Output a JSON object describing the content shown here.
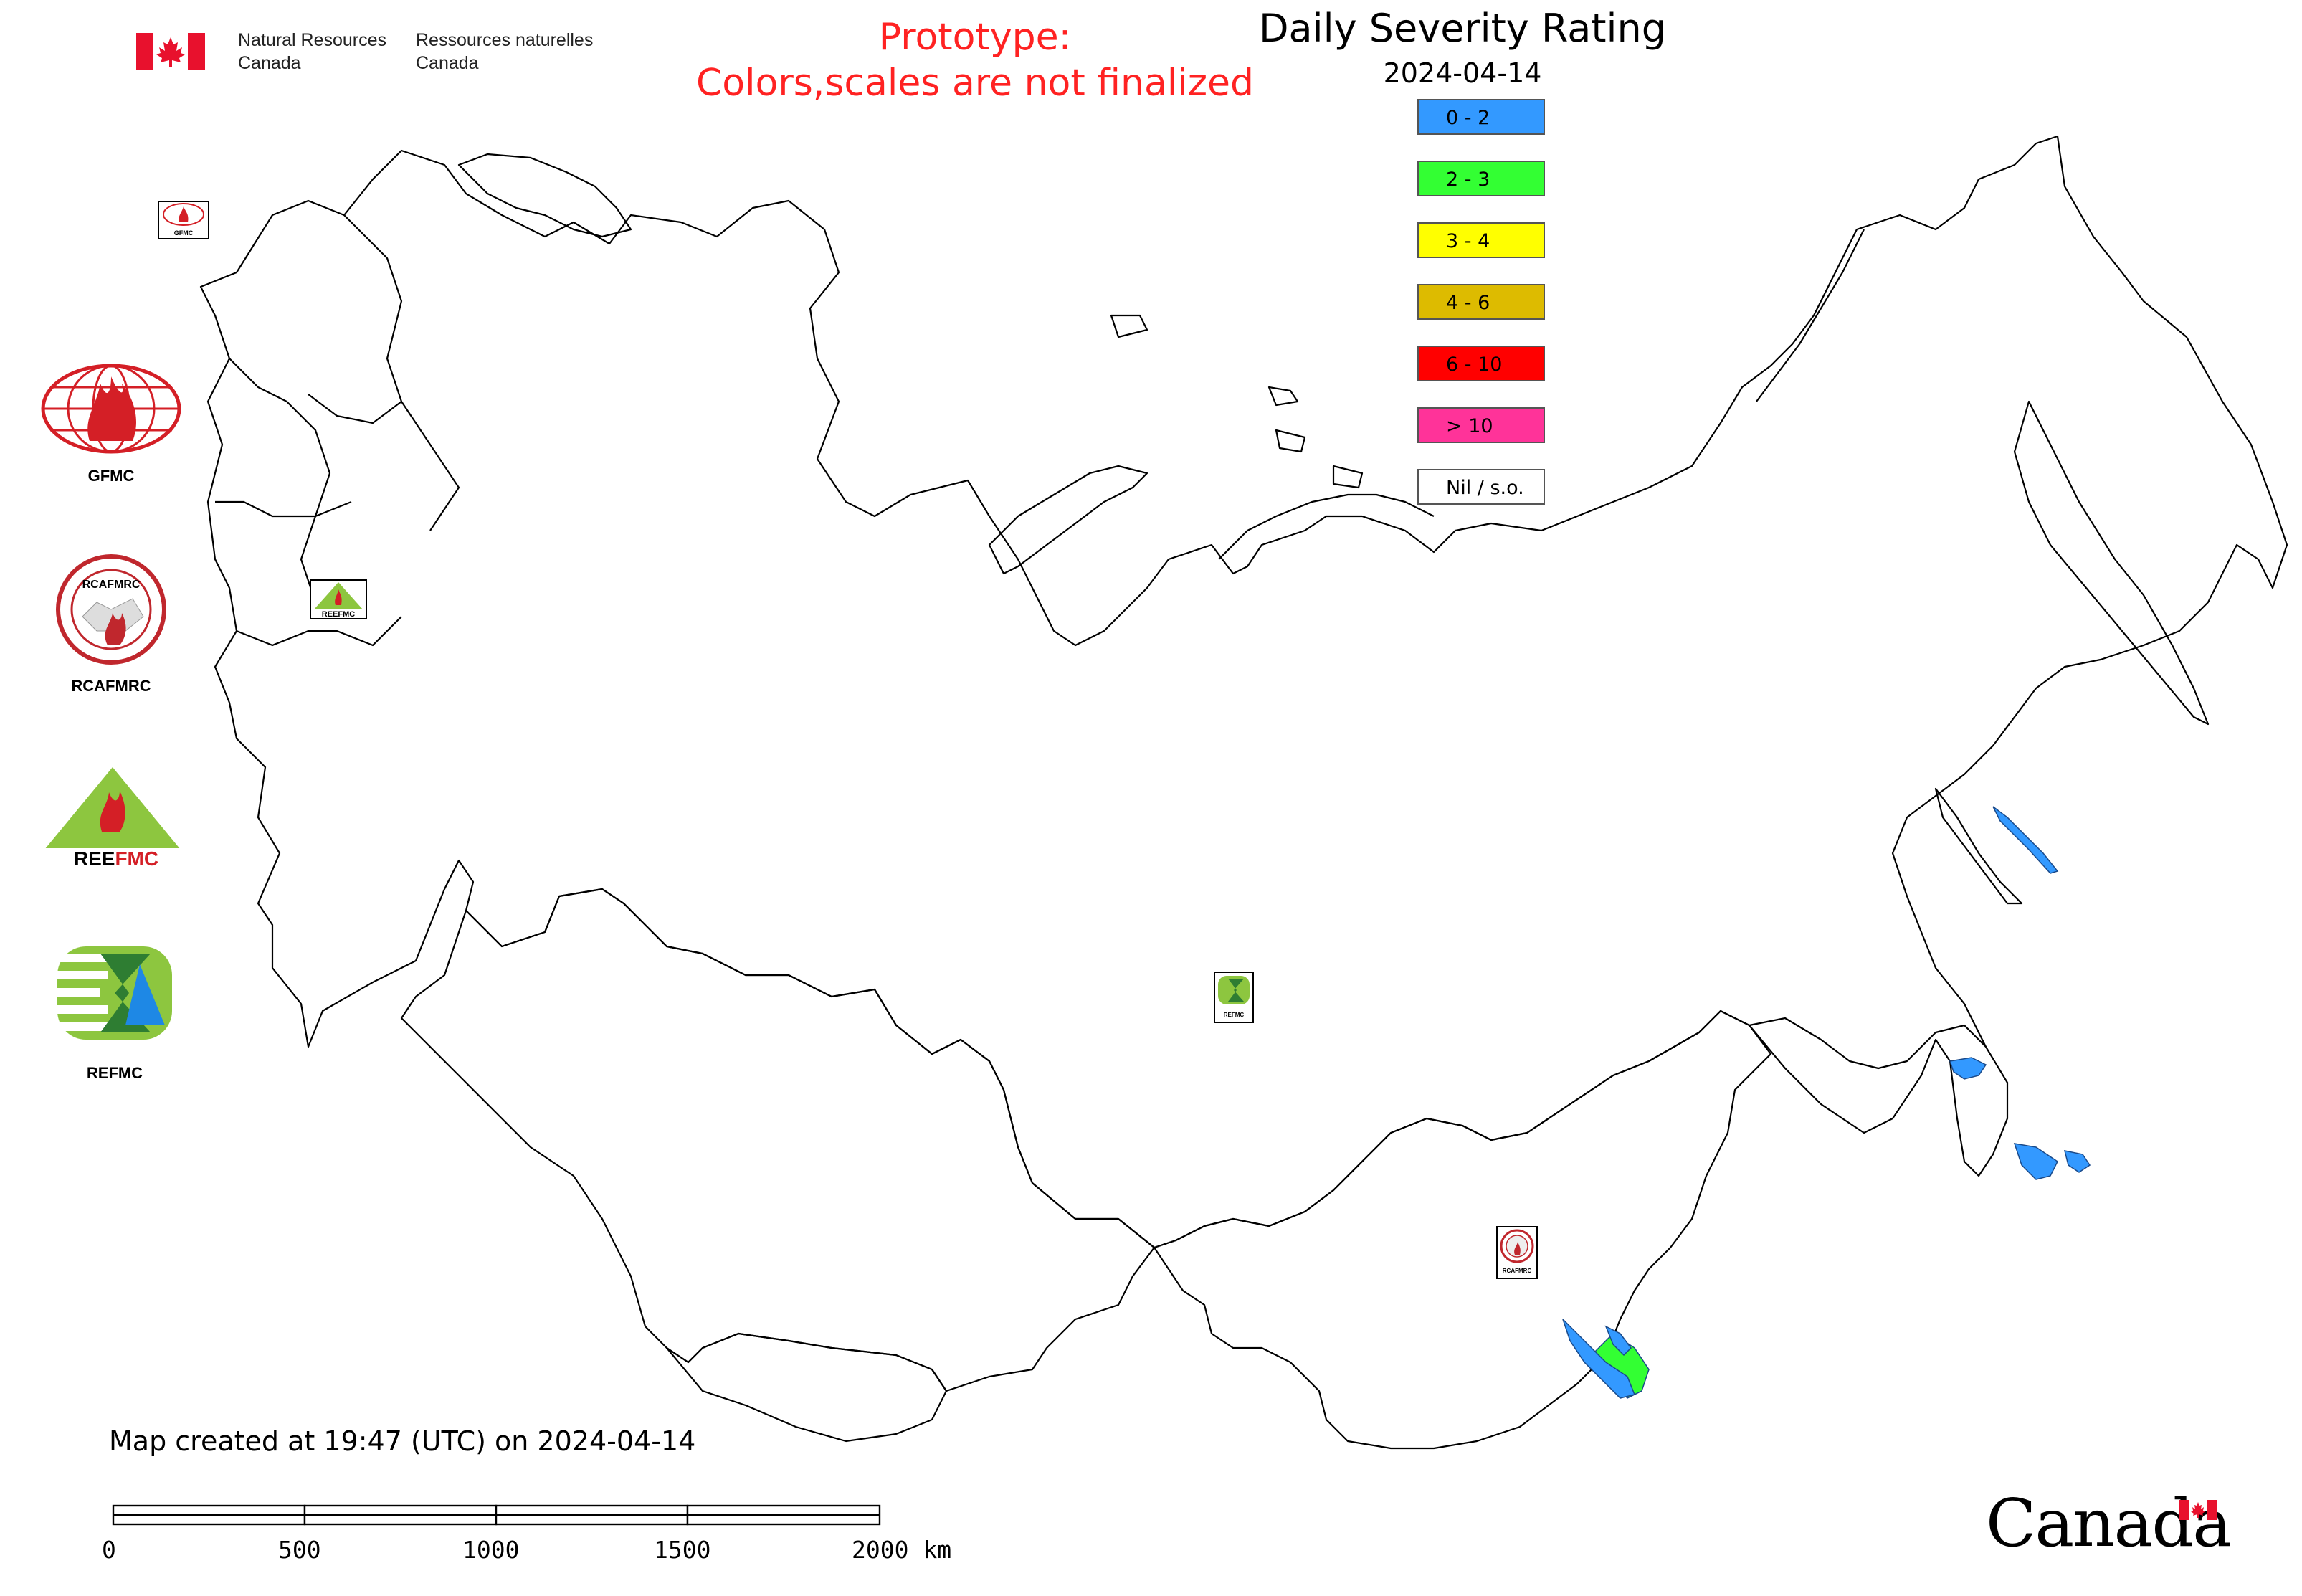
{
  "header": {
    "nrcan_en_line1": "Natural Resources",
    "nrcan_en_line2": "Canada",
    "nrcan_fr_line1": "Ressources naturelles",
    "nrcan_fr_line2": "Canada",
    "prototype_line1": "Prototype:",
    "prototype_line2": "Colors,scales are not finalized",
    "title": "Daily Severity Rating",
    "date": "2024-04-14"
  },
  "legend": {
    "items": [
      {
        "label": "0 - 2",
        "color": "#3399ff"
      },
      {
        "label": "2 - 3",
        "color": "#33ff33"
      },
      {
        "label": "3 - 4",
        "color": "#ffff00"
      },
      {
        "label": "4 - 6",
        "color": "#ddbb00"
      },
      {
        "label": "6 - 10",
        "color": "#ff0000"
      },
      {
        "label": "> 10",
        "color": "#ff3399"
      },
      {
        "label": "Nil / s.o.",
        "color": "#ffffff"
      }
    ]
  },
  "logos": {
    "gfmc": "GFMC",
    "gfmc_small": "GFMC",
    "rcafmrc": "RCAFMRC",
    "rcafmrc_small": "RCAFMRC",
    "reefmc": "REEFMC",
    "reefmc_small": "REEFMC",
    "refmc": "REFMC",
    "refmc_small": "REFMC"
  },
  "footer": {
    "created": "Map created at 19:47 (UTC) on 2024-04-14",
    "scale_labels": [
      "0",
      "500",
      "1000",
      "1500",
      "2000 km"
    ],
    "canada_wordmark": "Canada"
  }
}
